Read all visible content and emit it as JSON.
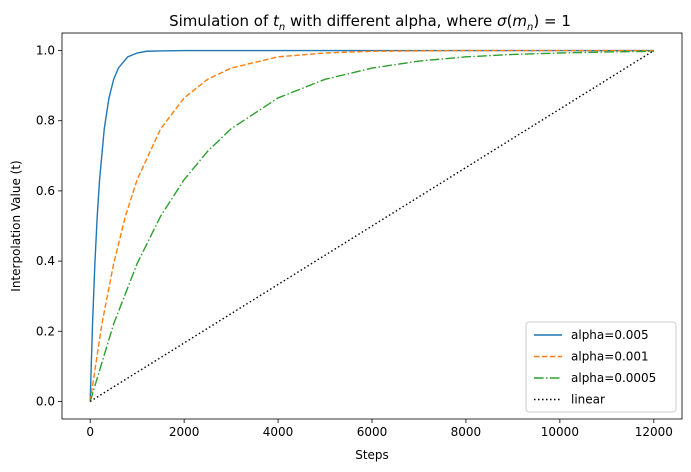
{
  "chart_data": {
    "type": "line",
    "title_prefix": "Simulation of ",
    "title_var": "t",
    "title_sub": "n",
    "title_mid": " with different alpha, where ",
    "title_sigma": "σ",
    "title_paren_open": "(",
    "title_m": "m",
    "title_m_sub": "n",
    "title_suffix": ") = 1",
    "xlabel": "Steps",
    "ylabel": "Interpolation Value (t)",
    "xlim": [
      -600,
      12600
    ],
    "ylim": [
      -0.05,
      1.05
    ],
    "xticks": [
      0,
      2000,
      4000,
      6000,
      8000,
      10000,
      12000
    ],
    "yticks": [
      0.0,
      0.2,
      0.4,
      0.6,
      0.8,
      1.0
    ],
    "xtick_labels": [
      "0",
      "2000",
      "4000",
      "6000",
      "8000",
      "10000",
      "12000"
    ],
    "ytick_labels": [
      "0.0",
      "0.2",
      "0.4",
      "0.6",
      "0.8",
      "1.0"
    ],
    "grid": false,
    "legend_position": "lower-right",
    "series": [
      {
        "name": "alpha=0.005",
        "color": "#1f77b4",
        "style": "solid",
        "x": [
          0,
          50,
          100,
          150,
          200,
          300,
          400,
          500,
          600,
          800,
          1000,
          1200,
          1500,
          2000,
          4000,
          8000,
          12000
        ],
        "y": [
          0.0,
          0.221,
          0.393,
          0.528,
          0.632,
          0.777,
          0.865,
          0.918,
          0.95,
          0.982,
          0.993,
          0.998,
          0.999,
          1.0,
          1.0,
          1.0,
          1.0
        ]
      },
      {
        "name": "alpha=0.001",
        "color": "#ff7f0e",
        "style": "dashed",
        "x": [
          0,
          250,
          500,
          750,
          1000,
          1500,
          2000,
          2500,
          3000,
          4000,
          5000,
          6000,
          7000,
          8000,
          10000,
          12000
        ],
        "y": [
          0.0,
          0.221,
          0.393,
          0.528,
          0.632,
          0.777,
          0.865,
          0.918,
          0.95,
          0.982,
          0.993,
          0.998,
          0.999,
          1.0,
          1.0,
          1.0
        ]
      },
      {
        "name": "alpha=0.0005",
        "color": "#2ca02c",
        "style": "dashdot",
        "x": [
          0,
          500,
          1000,
          1500,
          2000,
          2500,
          3000,
          4000,
          5000,
          6000,
          7000,
          8000,
          9000,
          10000,
          11000,
          12000
        ],
        "y": [
          0.0,
          0.221,
          0.393,
          0.528,
          0.632,
          0.713,
          0.777,
          0.865,
          0.918,
          0.95,
          0.97,
          0.982,
          0.989,
          0.993,
          0.996,
          0.998
        ]
      },
      {
        "name": "linear",
        "color": "#000000",
        "style": "dotted",
        "x": [
          0,
          12000
        ],
        "y": [
          0.0,
          1.0
        ]
      }
    ]
  }
}
